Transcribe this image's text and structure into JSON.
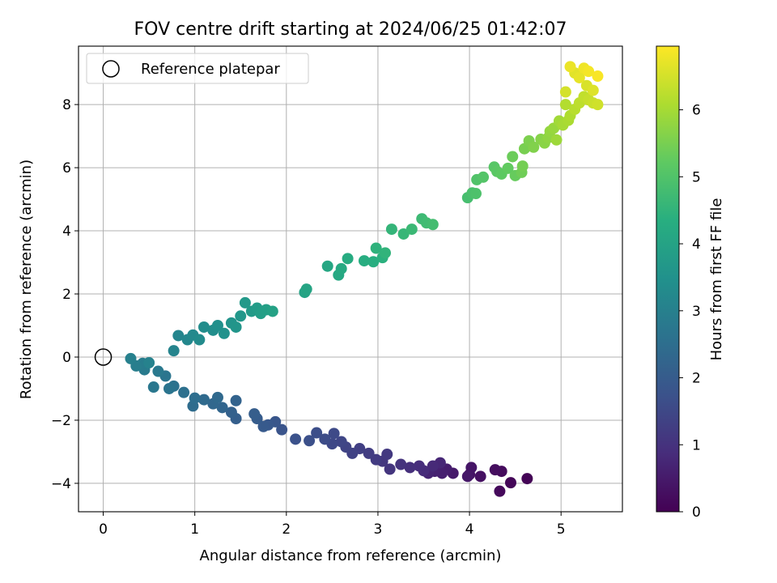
{
  "chart_data": {
    "type": "scatter",
    "title": "FOV centre drift starting at 2024/06/25 01:42:07",
    "xlabel": "Angular distance from reference (arcmin)",
    "ylabel": "Rotation from reference (arcmin)",
    "xlim": [
      -0.27,
      5.67
    ],
    "ylim": [
      -4.9,
      9.85
    ],
    "xticks": [
      0,
      1,
      2,
      3,
      4,
      5
    ],
    "yticks": [
      -4,
      -2,
      0,
      2,
      4,
      6,
      8
    ],
    "grid": true,
    "legend": {
      "placement": "top-left",
      "entries": [
        "Reference platepar"
      ]
    },
    "reference_point": {
      "x": 0,
      "y": 0,
      "label": "Reference platepar"
    },
    "colorbar": {
      "label": "Hours from first FF file",
      "colormap": "viridis",
      "range": [
        0,
        6.95
      ],
      "ticks": [
        0,
        1,
        2,
        3,
        4,
        5,
        6
      ]
    },
    "series": [
      {
        "values": [
          [
            4.63,
            -3.85,
            0.05
          ],
          [
            4.45,
            -3.98,
            0.1
          ],
          [
            4.33,
            -4.25,
            0.15
          ],
          [
            4.35,
            -3.62,
            0.2
          ],
          [
            4.28,
            -3.57,
            0.25
          ],
          [
            4.12,
            -3.78,
            0.3
          ],
          [
            4.0,
            -3.72,
            0.35
          ],
          [
            4.02,
            -3.5,
            0.4
          ],
          [
            3.98,
            -3.78,
            0.45
          ],
          [
            3.82,
            -3.68,
            0.5
          ],
          [
            3.75,
            -3.55,
            0.55
          ],
          [
            3.7,
            -3.68,
            0.6
          ],
          [
            3.62,
            -3.62,
            0.65
          ],
          [
            3.55,
            -3.68,
            0.7
          ],
          [
            3.68,
            -3.35,
            0.75
          ],
          [
            3.6,
            -3.45,
            0.8
          ],
          [
            3.5,
            -3.6,
            0.85
          ],
          [
            3.45,
            -3.45,
            0.9
          ],
          [
            3.35,
            -3.5,
            0.95
          ],
          [
            3.25,
            -3.4,
            1.0
          ],
          [
            3.13,
            -3.55,
            1.05
          ],
          [
            3.05,
            -3.3,
            1.1
          ],
          [
            3.1,
            -3.08,
            1.15
          ],
          [
            2.98,
            -3.25,
            1.2
          ],
          [
            2.9,
            -3.05,
            1.25
          ],
          [
            2.8,
            -2.9,
            1.3
          ],
          [
            2.72,
            -3.05,
            1.35
          ],
          [
            2.65,
            -2.85,
            1.4
          ],
          [
            2.6,
            -2.68,
            1.45
          ],
          [
            2.5,
            -2.75,
            1.5
          ],
          [
            2.52,
            -2.42,
            1.55
          ],
          [
            2.42,
            -2.6,
            1.6
          ],
          [
            2.33,
            -2.4,
            1.65
          ],
          [
            2.25,
            -2.65,
            1.7
          ],
          [
            2.1,
            -2.6,
            1.75
          ],
          [
            1.95,
            -2.3,
            1.8
          ],
          [
            1.88,
            -2.05,
            1.85
          ],
          [
            1.8,
            -2.15,
            1.9
          ],
          [
            1.75,
            -2.2,
            1.95
          ],
          [
            1.68,
            -1.95,
            2.0
          ],
          [
            1.65,
            -1.8,
            2.05
          ],
          [
            1.45,
            -1.95,
            2.1
          ],
          [
            1.4,
            -1.75,
            2.15
          ],
          [
            1.45,
            -1.38,
            2.2
          ],
          [
            1.3,
            -1.6,
            2.25
          ],
          [
            1.2,
            -1.48,
            2.3
          ],
          [
            1.25,
            -1.28,
            2.35
          ],
          [
            1.1,
            -1.35,
            2.4
          ],
          [
            0.98,
            -1.55,
            2.45
          ],
          [
            1.0,
            -1.3,
            2.5
          ],
          [
            0.88,
            -1.12,
            2.55
          ],
          [
            0.77,
            -0.92,
            2.6
          ],
          [
            0.72,
            -1.0,
            2.65
          ],
          [
            0.68,
            -0.6,
            2.7
          ],
          [
            0.55,
            -0.95,
            2.75
          ],
          [
            0.6,
            -0.45,
            2.8
          ],
          [
            0.45,
            -0.4,
            2.85
          ],
          [
            0.43,
            -0.2,
            2.9
          ],
          [
            0.36,
            -0.28,
            2.95
          ],
          [
            0.3,
            -0.05,
            3.0
          ],
          [
            0.5,
            -0.18,
            3.05
          ],
          [
            0.77,
            0.2,
            3.1
          ],
          [
            0.82,
            0.68,
            3.15
          ],
          [
            0.92,
            0.55,
            3.2
          ],
          [
            0.98,
            0.7,
            3.25
          ],
          [
            1.05,
            0.55,
            3.3
          ],
          [
            1.1,
            0.95,
            3.35
          ],
          [
            1.2,
            0.85,
            3.4
          ],
          [
            1.25,
            1.0,
            3.45
          ],
          [
            1.32,
            0.75,
            3.5
          ],
          [
            1.4,
            1.08,
            3.55
          ],
          [
            1.45,
            0.95,
            3.6
          ],
          [
            1.5,
            1.3,
            3.65
          ],
          [
            1.55,
            1.72,
            3.7
          ],
          [
            1.62,
            1.45,
            3.75
          ],
          [
            1.68,
            1.55,
            3.8
          ],
          [
            1.72,
            1.38,
            3.85
          ],
          [
            1.78,
            1.5,
            3.9
          ],
          [
            1.85,
            1.45,
            3.95
          ],
          [
            2.2,
            2.05,
            4.0
          ],
          [
            2.22,
            2.15,
            4.05
          ],
          [
            2.45,
            2.88,
            4.1
          ],
          [
            2.57,
            2.6,
            4.15
          ],
          [
            2.6,
            2.8,
            4.2
          ],
          [
            2.67,
            3.12,
            4.25
          ],
          [
            2.85,
            3.05,
            4.3
          ],
          [
            2.95,
            3.02,
            4.35
          ],
          [
            3.05,
            3.15,
            4.4
          ],
          [
            2.98,
            3.45,
            4.45
          ],
          [
            3.08,
            3.3,
            4.5
          ],
          [
            3.15,
            4.05,
            4.55
          ],
          [
            3.28,
            3.9,
            4.6
          ],
          [
            3.37,
            4.05,
            4.65
          ],
          [
            3.48,
            4.38,
            4.7
          ],
          [
            3.53,
            4.25,
            4.75
          ],
          [
            3.6,
            4.2,
            4.8
          ],
          [
            3.98,
            5.05,
            4.85
          ],
          [
            4.03,
            5.2,
            4.9
          ],
          [
            4.07,
            5.18,
            4.95
          ],
          [
            4.08,
            5.62,
            5.0
          ],
          [
            4.15,
            5.7,
            5.05
          ],
          [
            4.27,
            6.02,
            5.1
          ],
          [
            4.3,
            5.88,
            5.15
          ],
          [
            4.35,
            5.8,
            5.2
          ],
          [
            4.42,
            5.98,
            5.25
          ],
          [
            4.5,
            5.75,
            5.3
          ],
          [
            4.47,
            6.35,
            5.35
          ],
          [
            4.57,
            5.85,
            5.4
          ],
          [
            4.58,
            6.05,
            5.45
          ],
          [
            4.6,
            6.6,
            5.5
          ],
          [
            4.65,
            6.85,
            5.55
          ],
          [
            4.7,
            6.65,
            5.6
          ],
          [
            4.78,
            6.9,
            5.65
          ],
          [
            4.82,
            6.78,
            5.7
          ],
          [
            4.86,
            6.95,
            5.75
          ],
          [
            4.88,
            7.15,
            5.8
          ],
          [
            4.92,
            7.25,
            5.85
          ],
          [
            4.95,
            6.88,
            5.9
          ],
          [
            4.98,
            7.48,
            5.95
          ],
          [
            5.02,
            7.35,
            6.0
          ],
          [
            5.08,
            7.5,
            6.05
          ],
          [
            5.1,
            7.65,
            6.1
          ],
          [
            5.05,
            8.0,
            6.15
          ],
          [
            5.15,
            7.85,
            6.2
          ],
          [
            5.2,
            8.05,
            6.25
          ],
          [
            5.25,
            8.25,
            6.3
          ],
          [
            5.3,
            8.15,
            6.35
          ],
          [
            5.35,
            8.05,
            6.4
          ],
          [
            5.4,
            8.0,
            6.45
          ],
          [
            5.05,
            8.4,
            6.5
          ],
          [
            5.28,
            8.6,
            6.55
          ],
          [
            5.35,
            8.45,
            6.6
          ],
          [
            5.15,
            9.0,
            6.65
          ],
          [
            5.2,
            8.85,
            6.7
          ],
          [
            5.1,
            9.2,
            6.75
          ],
          [
            5.25,
            9.15,
            6.8
          ],
          [
            5.3,
            9.05,
            6.85
          ],
          [
            5.4,
            8.9,
            6.9
          ]
        ]
      }
    ]
  }
}
